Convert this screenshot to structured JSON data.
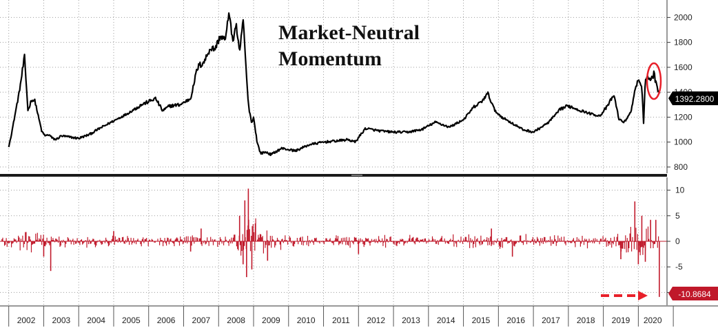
{
  "chart_data": [
    {
      "type": "line",
      "title_lines": [
        "Market-Neutral",
        "Momentum"
      ],
      "ylim": [
        750,
        2140
      ],
      "yticks": [
        800,
        1000,
        1200,
        1400,
        1600,
        1800,
        2000
      ],
      "grid": true,
      "last_value_label": "1392.2800",
      "colors": {
        "line": "#000000",
        "highlight": "#e8202a"
      },
      "x": [
        2002.0,
        2002.1,
        2002.3,
        2002.45,
        2002.55,
        2002.65,
        2002.75,
        2002.85,
        2002.95,
        2003.05,
        2003.15,
        2003.25,
        2003.35,
        2003.5,
        2003.75,
        2004.0,
        2004.3,
        2004.6,
        2005.0,
        2005.4,
        2005.8,
        2006.2,
        2006.4,
        2006.6,
        2006.9,
        2007.2,
        2007.4,
        2007.6,
        2007.75,
        2007.9,
        2008.05,
        2008.2,
        2008.3,
        2008.4,
        2008.5,
        2008.6,
        2008.7,
        2008.75,
        2008.85,
        2008.95,
        2009.0,
        2009.1,
        2009.2,
        2009.35,
        2009.5,
        2009.8,
        2010.2,
        2010.6,
        2011.0,
        2011.4,
        2011.7,
        2011.9,
        2012.2,
        2012.6,
        2013.0,
        2013.4,
        2013.8,
        2014.2,
        2014.6,
        2015.0,
        2015.3,
        2015.5,
        2015.7,
        2015.9,
        2016.1,
        2016.4,
        2016.7,
        2017.0,
        2017.4,
        2017.8,
        2018.0,
        2018.3,
        2018.6,
        2018.9,
        2019.1,
        2019.3,
        2019.45,
        2019.6,
        2019.8,
        2019.9,
        2020.0,
        2020.1,
        2020.15,
        2020.2,
        2020.35,
        2020.45,
        2020.55,
        2020.62
      ],
      "y": [
        960,
        1100,
        1400,
        1680,
        1250,
        1340,
        1330,
        1200,
        1080,
        1050,
        1060,
        1030,
        1020,
        1050,
        1040,
        1030,
        1060,
        1110,
        1170,
        1230,
        1300,
        1350,
        1250,
        1290,
        1300,
        1350,
        1600,
        1650,
        1750,
        1750,
        1850,
        1820,
        2060,
        1800,
        1950,
        1700,
        2000,
        1750,
        1300,
        1150,
        1200,
        1000,
        910,
        920,
        900,
        950,
        930,
        980,
        1000,
        1010,
        1020,
        1000,
        1110,
        1090,
        1080,
        1080,
        1100,
        1160,
        1120,
        1180,
        1280,
        1320,
        1390,
        1250,
        1200,
        1150,
        1100,
        1080,
        1150,
        1270,
        1290,
        1260,
        1230,
        1210,
        1280,
        1380,
        1180,
        1160,
        1250,
        1420,
        1500,
        1430,
        1150,
        1530,
        1500,
        1550,
        1420,
        1392
      ]
    },
    {
      "type": "bar",
      "ylim": [
        -12.5,
        12.5
      ],
      "yticks": [
        -10,
        -5,
        0,
        5,
        10
      ],
      "ytick_labels": [
        "-10",
        "-5",
        "0",
        "5",
        "10"
      ],
      "grid": true,
      "last_value_label": "-10.8684",
      "colors": {
        "bars": "#c0182a",
        "label_bg": "#c0182a",
        "arrow": "#e8202a"
      },
      "events_x": [
        2003.0,
        2003.2,
        2005.0,
        2007.2,
        2007.5,
        2008.6,
        2008.7,
        2008.75,
        2008.8,
        2008.85,
        2008.95,
        2009.05,
        2009.4,
        2012.0,
        2015.8,
        2016.4,
        2019.5,
        2019.9,
        2020.0,
        2020.1,
        2020.2,
        2020.35,
        2020.5,
        2020.6
      ],
      "events_y": [
        -3,
        -5.8,
        2,
        -2,
        2.5,
        5,
        -4.5,
        8,
        -7,
        10.3,
        -5.5,
        3.5,
        -3.8,
        -2.5,
        2.5,
        -3,
        -3.5,
        7.8,
        -4.5,
        5,
        -4,
        4.2,
        4.2,
        -10.87
      ]
    },
    {
      "type": "axis",
      "year_labels": [
        "2002",
        "2003",
        "2004",
        "2005",
        "2006",
        "2007",
        "2008",
        "2009",
        "2010",
        "2011",
        "2012",
        "2013",
        "2014",
        "2015",
        "2016",
        "2017",
        "2018",
        "2019",
        "2020"
      ]
    }
  ]
}
